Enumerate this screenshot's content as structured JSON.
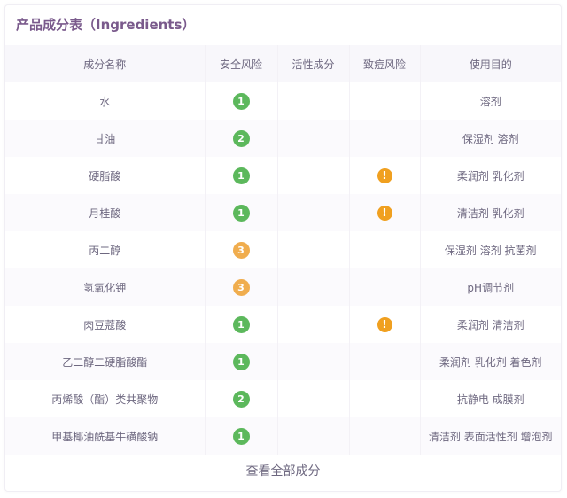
{
  "title": "产品成分表（Ingredients）",
  "columns": [
    "成分名称",
    "安全风险",
    "活性成分",
    "致痘风险",
    "使用目的"
  ],
  "colors": {
    "risk_low": "#5cb85c",
    "risk_mid": "#f0ad4e",
    "acne_warning": "#f0a020",
    "title": "#7a5a8c"
  },
  "rows": [
    {
      "name": "水",
      "safety": "1",
      "active": "",
      "acne": false,
      "purpose": "溶剂"
    },
    {
      "name": "甘油",
      "safety": "2",
      "active": "",
      "acne": false,
      "purpose": "保湿剂 溶剂"
    },
    {
      "name": "硬脂酸",
      "safety": "1",
      "active": "",
      "acne": true,
      "purpose": "柔润剂 乳化剂"
    },
    {
      "name": "月桂酸",
      "safety": "1",
      "active": "",
      "acne": true,
      "purpose": "清洁剂 乳化剂"
    },
    {
      "name": "丙二醇",
      "safety": "3",
      "active": "",
      "acne": false,
      "purpose": "保湿剂 溶剂 抗菌剂"
    },
    {
      "name": "氢氧化钾",
      "safety": "3",
      "active": "",
      "acne": false,
      "purpose": "pH调节剂"
    },
    {
      "name": "肉豆蔻酸",
      "safety": "1",
      "active": "",
      "acne": true,
      "purpose": "柔润剂 清洁剂"
    },
    {
      "name": "乙二醇二硬脂酸酯",
      "safety": "1",
      "active": "",
      "acne": false,
      "purpose": "柔润剂 乳化剂 着色剂"
    },
    {
      "name": "丙烯酸（酯）类共聚物",
      "safety": "2",
      "active": "",
      "acne": false,
      "purpose": "抗静电 成膜剂"
    },
    {
      "name": "甲基椰油酰基牛磺酸钠",
      "safety": "1",
      "active": "",
      "acne": false,
      "purpose": "清洁剂 表面活性剂 增泡剂"
    }
  ],
  "acne_icon": "!",
  "icons": {
    "acne": "exclamation-circle-icon"
  },
  "view_all": "查看全部成分"
}
